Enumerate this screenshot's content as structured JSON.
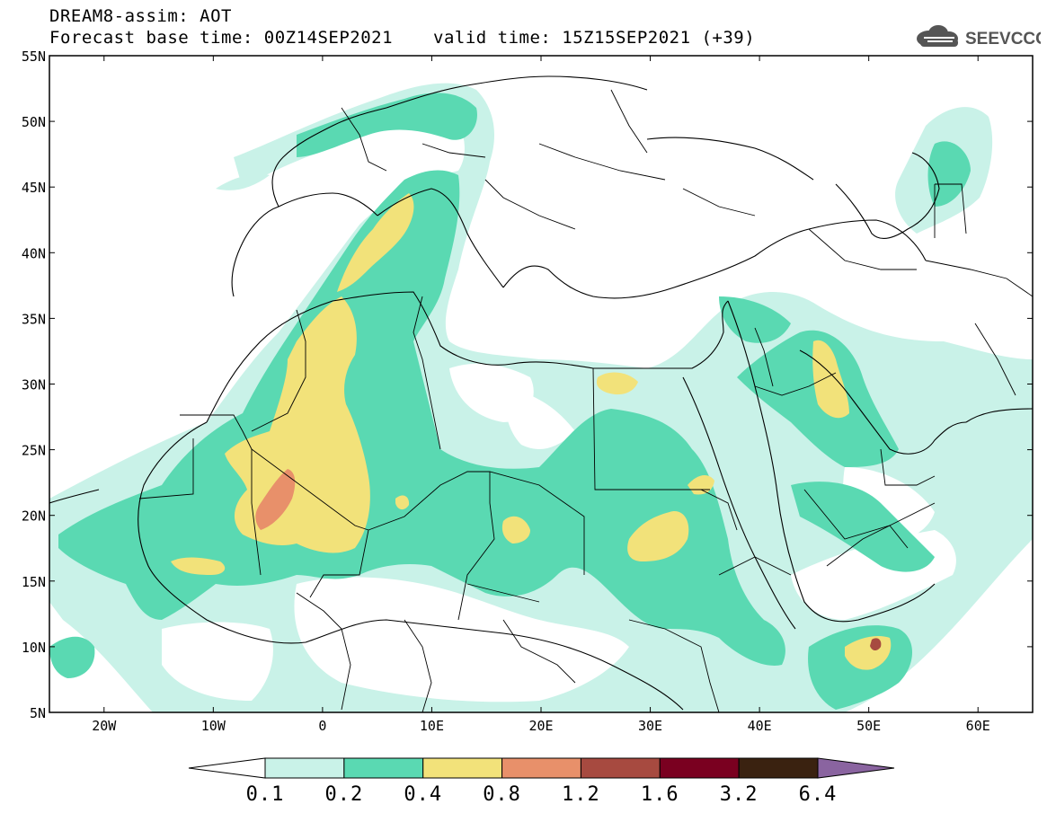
{
  "header": {
    "title": "DREAM8-assim: AOT",
    "base_time": "Forecast base time: 00Z14SEP2021",
    "valid_time": "valid time: 15Z15SEP2021 (+39)"
  },
  "logo": {
    "text": "SEEVCCC",
    "icon": "cloud-icon"
  },
  "map": {
    "lon_range": [
      -25,
      65
    ],
    "lat_range": [
      5,
      55
    ],
    "lat_ticks": [
      "55N",
      "50N",
      "45N",
      "40N",
      "35N",
      "30N",
      "25N",
      "20N",
      "15N",
      "10N",
      "5N"
    ],
    "lon_ticks": [
      "20W",
      "10W",
      "0",
      "10E",
      "20E",
      "30E",
      "40E",
      "50E",
      "60E"
    ]
  },
  "colorbar": {
    "labels": [
      "0.1",
      "0.2",
      "0.4",
      "0.8",
      "1.2",
      "1.6",
      "3.2",
      "6.4"
    ],
    "colors": [
      "#ffffff",
      "#c9f2e8",
      "#5ad9b2",
      "#f2e27a",
      "#e8906a",
      "#a74a40",
      "#7a0020",
      "#3a2210",
      "#8a64a0"
    ]
  }
}
